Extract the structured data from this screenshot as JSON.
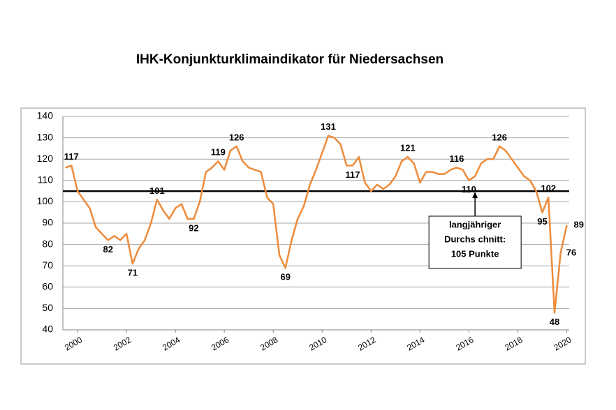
{
  "chart_data": {
    "type": "line",
    "title": "IHK-Konjunkturklimaindikator für Niedersachsen",
    "x": [
      1999.5,
      1999.75,
      2000,
      2000.25,
      2000.5,
      2000.75,
      2001,
      2001.25,
      2001.5,
      2001.75,
      2002,
      2002.25,
      2002.5,
      2002.75,
      2003,
      2003.25,
      2003.5,
      2003.75,
      2004,
      2004.25,
      2004.5,
      2004.75,
      2005,
      2005.25,
      2005.5,
      2005.75,
      2006,
      2006.25,
      2006.5,
      2006.75,
      2007,
      2007.25,
      2007.5,
      2007.75,
      2008,
      2008.25,
      2008.5,
      2008.75,
      2009,
      2009.25,
      2009.5,
      2009.75,
      2010,
      2010.25,
      2010.5,
      2010.75,
      2011,
      2011.25,
      2011.5,
      2011.75,
      2012,
      2012.25,
      2012.5,
      2012.75,
      2013,
      2013.25,
      2013.5,
      2013.75,
      2014,
      2014.25,
      2014.5,
      2014.75,
      2015,
      2015.25,
      2015.5,
      2015.75,
      2016,
      2016.25,
      2016.5,
      2016.75,
      2017,
      2017.25,
      2017.5,
      2017.75,
      2018,
      2018.25,
      2018.5,
      2018.75,
      2019,
      2019.25,
      2019.5,
      2019.75,
      2020
    ],
    "series": [
      {
        "color": "#ED8B3B",
        "values": [
          116,
          117,
          105,
          101,
          97,
          88,
          85,
          82,
          84,
          82,
          85,
          71,
          78,
          82,
          90,
          101,
          96,
          92,
          97,
          99,
          92,
          92,
          100,
          114,
          116,
          119,
          115,
          124,
          126,
          119,
          116,
          115,
          114,
          102,
          99,
          75,
          69,
          82,
          92,
          98,
          108,
          115,
          123,
          131,
          130,
          127,
          117,
          117,
          121,
          109,
          105,
          108,
          106,
          108,
          112,
          119,
          121,
          118,
          109,
          114,
          114,
          113,
          113,
          115,
          116,
          115,
          110,
          112,
          118,
          120,
          120,
          126,
          124,
          120,
          116,
          112,
          110,
          105,
          95,
          102,
          48,
          76,
          89
        ],
        "value_labels": [
          null,
          "117",
          null,
          null,
          null,
          null,
          null,
          "82",
          null,
          null,
          null,
          "71",
          null,
          null,
          null,
          "101",
          null,
          null,
          null,
          null,
          null,
          "92",
          null,
          null,
          null,
          "119",
          null,
          null,
          "126",
          null,
          null,
          null,
          null,
          null,
          null,
          null,
          "69",
          null,
          null,
          null,
          null,
          null,
          null,
          "131",
          null,
          null,
          null,
          "117",
          null,
          null,
          null,
          null,
          null,
          null,
          null,
          null,
          "121",
          null,
          null,
          null,
          null,
          null,
          null,
          null,
          "116",
          null,
          "110",
          null,
          null,
          null,
          null,
          "126",
          null,
          null,
          null,
          null,
          null,
          null,
          "95",
          "102",
          "48",
          "76",
          "89"
        ]
      }
    ],
    "xlim": [
      1999.4,
      2020.1
    ],
    "xticks": [
      2000,
      2002,
      2004,
      2006,
      2008,
      2010,
      2012,
      2014,
      2016,
      2018,
      2020
    ],
    "ylim": [
      40,
      140
    ],
    "yticks": [
      40,
      50,
      60,
      70,
      80,
      90,
      100,
      110,
      120,
      130,
      140
    ],
    "grid": true,
    "reference_line": {
      "value": 105,
      "annotation": [
        "langjähriger",
        "Durchs chnitt:",
        "105 Punkte"
      ],
      "x": 2016.25
    }
  }
}
